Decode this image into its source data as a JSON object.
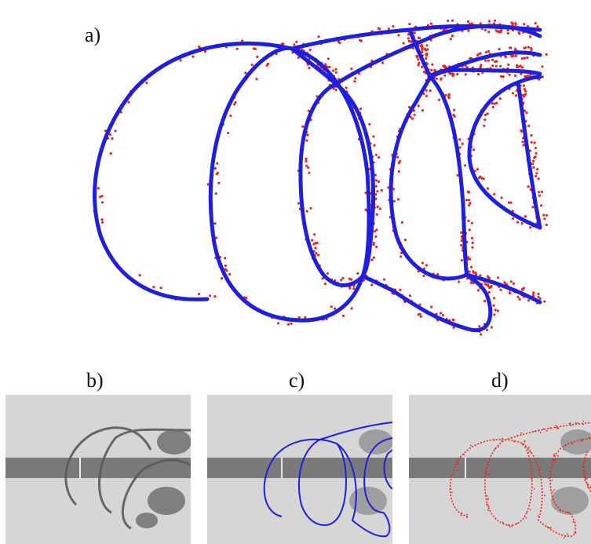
{
  "panels": {
    "a": {
      "label": "a)"
    },
    "b": {
      "label": "b)"
    },
    "c": {
      "label": "c)"
    },
    "d": {
      "label": "d)"
    }
  },
  "colors": {
    "contour_blue": "#1f1fe0",
    "point_red": "#e8261c",
    "photo_bg": "#d6d6d6",
    "band_gray": "#7a7a7a"
  }
}
